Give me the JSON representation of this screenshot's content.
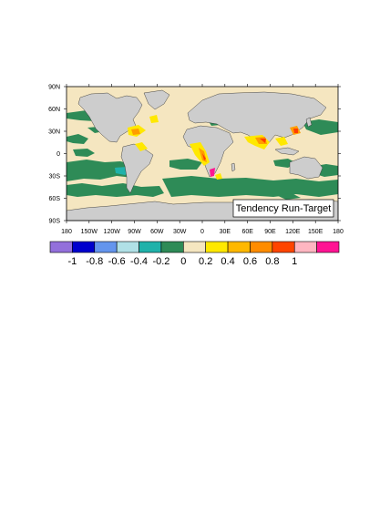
{
  "map": {
    "annotation": "Tendency Run-Target",
    "lat_labels": [
      "90N",
      "60N",
      "30N",
      "0",
      "30S",
      "60S",
      "90S"
    ],
    "lon_labels": [
      "180",
      "150W",
      "120W",
      "90W",
      "60W",
      "30W",
      "0",
      "30E",
      "60E",
      "90E",
      "120E",
      "150E",
      "180"
    ],
    "colors": {
      "ocean": "#f5e6c0",
      "land": "#cdcdcd",
      "neg_band": "#2e8b57",
      "pos_yellow": "#ffe800",
      "pos_orange": "#ff9d00",
      "pos_red": "#ff3d00",
      "pos_magenta": "#ff1493"
    }
  },
  "colorbar": {
    "swatches": [
      "#9370db",
      "#0000cd",
      "#6495ed",
      "#b0e0e6",
      "#20b2aa",
      "#2e8b57",
      "#f5e6c0",
      "#ffe800",
      "#ffb800",
      "#ff8c00",
      "#ff4500",
      "#ffb6c1",
      "#ff1493"
    ],
    "labels": [
      "-1",
      "-0.8",
      "-0.6",
      "-0.4",
      "-0.2",
      "0",
      "0.2",
      "0.4",
      "0.6",
      "0.8",
      "1"
    ]
  }
}
